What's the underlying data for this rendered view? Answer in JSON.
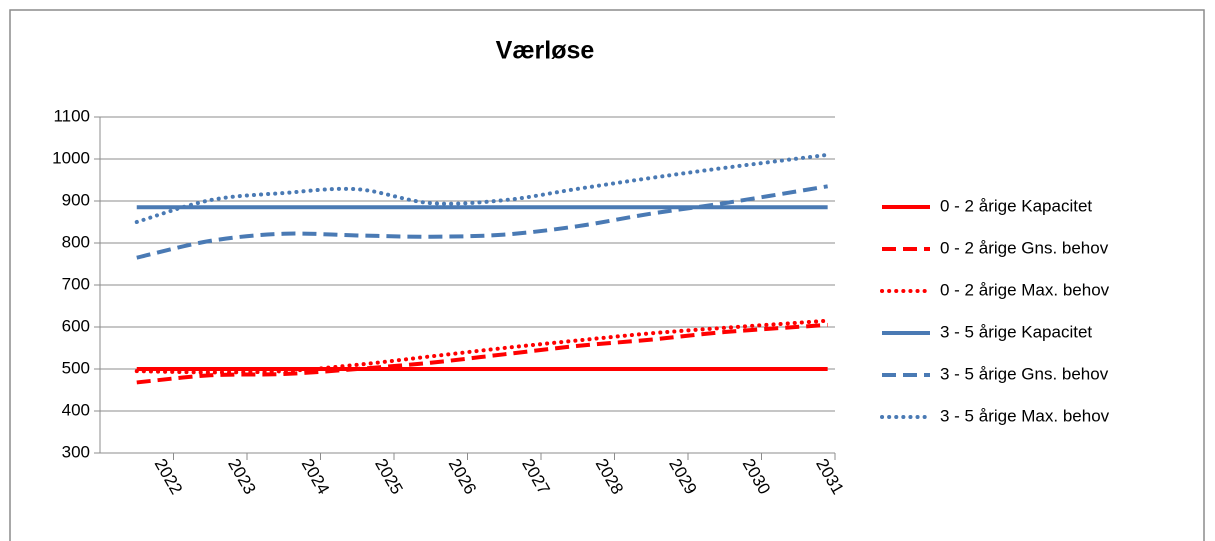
{
  "chart_data": {
    "type": "line",
    "title": "Værløse",
    "x": [
      2021.5,
      2022.5,
      2023.5,
      2024.5,
      2025.5,
      2026.5,
      2027.5,
      2028.5,
      2029.5,
      2030.9
    ],
    "xlim": [
      2021,
      2031
    ],
    "xticks": [
      2022,
      2023,
      2024,
      2025,
      2026,
      2027,
      2028,
      2029,
      2030,
      2031
    ],
    "ylim": [
      300,
      1100
    ],
    "yticks": [
      300,
      400,
      500,
      600,
      700,
      800,
      900,
      1000,
      1100
    ],
    "grid": true,
    "legend": "right",
    "series": [
      {
        "name": "0 - 2 årige Kapacitet",
        "color": "#ff0000",
        "style": "solid",
        "values": [
          500,
          500,
          500,
          500,
          500,
          500,
          500,
          500,
          500,
          500
        ]
      },
      {
        "name": "0 - 2 årige Gns. behov",
        "color": "#ff0000",
        "style": "dashed",
        "values": [
          468,
          485,
          488,
          500,
          515,
          535,
          555,
          570,
          588,
          605
        ]
      },
      {
        "name": "0 - 2 årige Max. behov",
        "color": "#ff0000",
        "style": "dotted",
        "values": [
          495,
          492,
          495,
          510,
          530,
          550,
          568,
          585,
          598,
          615
        ]
      },
      {
        "name": "3 - 5 årige Kapacitet",
        "color": "#4a7ab4",
        "style": "solid",
        "values": [
          885,
          885,
          885,
          885,
          885,
          885,
          885,
          885,
          885,
          885
        ]
      },
      {
        "name": "3 - 5 årige Gns. behov",
        "color": "#4a7ab4",
        "style": "dashed",
        "values": [
          765,
          805,
          822,
          818,
          815,
          820,
          840,
          870,
          895,
          935
        ]
      },
      {
        "name": "3 - 5 årige Max. behov",
        "color": "#4a7ab4",
        "style": "dotted",
        "values": [
          850,
          902,
          919,
          928,
          895,
          902,
          929,
          955,
          979,
          1010
        ]
      }
    ]
  }
}
